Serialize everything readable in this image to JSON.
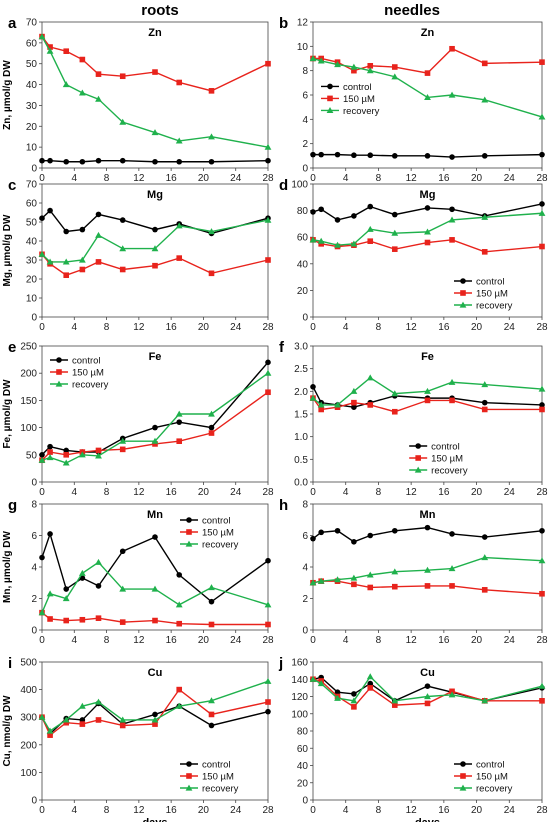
{
  "column_titles": [
    "roots",
    "needles"
  ],
  "xlabel": "days",
  "xticks": [
    0,
    4,
    8,
    12,
    16,
    20,
    24,
    28
  ],
  "series_colors": {
    "control": "#000000",
    "150 µM": "#e8231c",
    "recovery": "#1fb14c"
  },
  "series_markers": {
    "control": "circle",
    "150 µM": "square",
    "recovery": "triangle"
  },
  "chart_data": [
    {
      "type": "line",
      "panel": "a",
      "title": "Zn",
      "ylabel": "Zn, µmol/g DW",
      "ylim": [
        0,
        70
      ],
      "yticks": [
        0,
        10,
        20,
        30,
        40,
        50,
        60,
        70
      ],
      "x": [
        0,
        1,
        3,
        5,
        7,
        10,
        14,
        17,
        21,
        28
      ],
      "legend": false,
      "series": [
        {
          "name": "control",
          "values": [
            3.5,
            3.5,
            3,
            3,
            3.5,
            3.5,
            3,
            3,
            3,
            3.5
          ]
        },
        {
          "name": "150 µM",
          "values": [
            63,
            58,
            56,
            52,
            45,
            44,
            46,
            41,
            37,
            50
          ]
        },
        {
          "name": "recovery",
          "values": [
            63,
            56,
            40,
            36,
            33,
            22,
            17,
            13,
            15,
            10
          ]
        }
      ]
    },
    {
      "type": "line",
      "panel": "b",
      "title": "Zn",
      "ylabel": "",
      "ylim": [
        0,
        12
      ],
      "yticks": [
        0,
        2,
        4,
        6,
        8,
        10,
        12
      ],
      "x": [
        0,
        1,
        3,
        5,
        7,
        10,
        14,
        17,
        21,
        28
      ],
      "legend": true,
      "legend_position": "center-left",
      "series": [
        {
          "name": "control",
          "values": [
            1.1,
            1.1,
            1.1,
            1.05,
            1.05,
            1.0,
            1.0,
            0.9,
            1.0,
            1.1
          ]
        },
        {
          "name": "150 µM",
          "values": [
            9,
            9,
            8.7,
            8.0,
            8.4,
            8.3,
            7.8,
            9.8,
            8.6,
            8.7
          ]
        },
        {
          "name": "recovery",
          "values": [
            9,
            8.8,
            8.5,
            8.3,
            8.0,
            7.5,
            5.8,
            6.0,
            5.6,
            4.2
          ]
        }
      ]
    },
    {
      "type": "line",
      "panel": "c",
      "title": "Mg",
      "ylabel": "Mg, µmol/g DW",
      "ylim": [
        0,
        70
      ],
      "yticks": [
        0,
        10,
        20,
        30,
        40,
        50,
        60,
        70
      ],
      "x": [
        0,
        1,
        3,
        5,
        7,
        10,
        14,
        17,
        21,
        28
      ],
      "legend": false,
      "series": [
        {
          "name": "control",
          "values": [
            52,
            56,
            45,
            46,
            54,
            51,
            46,
            49,
            44,
            52
          ]
        },
        {
          "name": "150 µM",
          "values": [
            33,
            28,
            22,
            25,
            29,
            25,
            27,
            31,
            23,
            30
          ]
        },
        {
          "name": "recovery",
          "values": [
            33,
            29,
            29,
            30,
            43,
            36,
            36,
            48,
            45,
            51
          ]
        }
      ]
    },
    {
      "type": "line",
      "panel": "d",
      "title": "Mg",
      "ylabel": "",
      "ylim": [
        0,
        100
      ],
      "yticks": [
        0,
        20,
        40,
        60,
        80,
        100
      ],
      "x": [
        0,
        1,
        3,
        5,
        7,
        10,
        14,
        17,
        21,
        28
      ],
      "legend": true,
      "legend_position": "bottom-right",
      "series": [
        {
          "name": "control",
          "values": [
            79,
            81,
            73,
            76,
            83,
            77,
            82,
            81,
            76,
            85
          ]
        },
        {
          "name": "150 µM",
          "values": [
            58,
            55,
            53,
            54,
            57,
            51,
            56,
            58,
            49,
            53
          ]
        },
        {
          "name": "recovery",
          "values": [
            58,
            57,
            54,
            55,
            66,
            63,
            64,
            73,
            75,
            78
          ]
        }
      ]
    },
    {
      "type": "line",
      "panel": "e",
      "title": "Fe",
      "ylabel": "Fe, µmol/g DW",
      "ylim": [
        0,
        250
      ],
      "yticks": [
        0,
        50,
        100,
        150,
        200,
        250
      ],
      "x": [
        0,
        1,
        3,
        5,
        7,
        10,
        14,
        17,
        21,
        28
      ],
      "legend": true,
      "legend_position": "top-left",
      "series": [
        {
          "name": "control",
          "values": [
            50,
            65,
            58,
            55,
            55,
            80,
            100,
            110,
            100,
            220
          ]
        },
        {
          "name": "150 µM",
          "values": [
            40,
            55,
            50,
            55,
            58,
            60,
            70,
            75,
            90,
            165
          ]
        },
        {
          "name": "recovery",
          "values": [
            40,
            45,
            35,
            50,
            48,
            75,
            75,
            125,
            125,
            200
          ]
        }
      ]
    },
    {
      "type": "line",
      "panel": "f",
      "title": "Fe",
      "ylabel": "",
      "ylim": [
        0,
        3.0
      ],
      "yticks": [
        0,
        0.5,
        1.0,
        1.5,
        2.0,
        2.5,
        3.0
      ],
      "x": [
        0,
        1,
        3,
        5,
        7,
        10,
        14,
        17,
        21,
        28
      ],
      "legend": true,
      "legend_position": "bottom-center",
      "series": [
        {
          "name": "control",
          "values": [
            2.1,
            1.75,
            1.7,
            1.65,
            1.75,
            1.9,
            1.85,
            1.85,
            1.75,
            1.7
          ]
        },
        {
          "name": "150 µM",
          "values": [
            1.85,
            1.6,
            1.65,
            1.75,
            1.7,
            1.55,
            1.8,
            1.8,
            1.6,
            1.6
          ]
        },
        {
          "name": "recovery",
          "values": [
            1.85,
            1.7,
            1.7,
            2.0,
            2.3,
            1.95,
            2.0,
            2.2,
            2.15,
            2.05
          ]
        }
      ]
    },
    {
      "type": "line",
      "panel": "g",
      "title": "Mn",
      "ylabel": "Mn, µmol/g DW",
      "ylim": [
        0,
        8
      ],
      "yticks": [
        0,
        2,
        4,
        6,
        8
      ],
      "x": [
        0,
        1,
        3,
        5,
        7,
        10,
        14,
        17,
        21,
        28
      ],
      "legend": true,
      "legend_position": "top-right",
      "series": [
        {
          "name": "control",
          "values": [
            4.6,
            6.1,
            2.6,
            3.3,
            2.8,
            5.0,
            5.9,
            3.5,
            1.8,
            4.4
          ]
        },
        {
          "name": "150 µM",
          "values": [
            1.1,
            0.7,
            0.6,
            0.65,
            0.75,
            0.5,
            0.6,
            0.4,
            0.35,
            0.35
          ]
        },
        {
          "name": "recovery",
          "values": [
            1.1,
            2.3,
            2.0,
            3.6,
            4.3,
            2.6,
            2.6,
            1.6,
            2.7,
            1.6
          ]
        }
      ]
    },
    {
      "type": "line",
      "panel": "h",
      "title": "Mn",
      "ylabel": "",
      "ylim": [
        0,
        8
      ],
      "yticks": [
        0,
        2,
        4,
        6,
        8
      ],
      "x": [
        0,
        1,
        3,
        5,
        7,
        10,
        14,
        17,
        21,
        28
      ],
      "legend": false,
      "series": [
        {
          "name": "control",
          "values": [
            5.8,
            6.2,
            6.3,
            5.6,
            6.0,
            6.3,
            6.5,
            6.1,
            5.9,
            6.3
          ]
        },
        {
          "name": "150 µM",
          "values": [
            3.0,
            3.1,
            3.1,
            2.9,
            2.7,
            2.75,
            2.8,
            2.8,
            2.55,
            2.3
          ]
        },
        {
          "name": "recovery",
          "values": [
            3.0,
            3.1,
            3.2,
            3.3,
            3.5,
            3.7,
            3.8,
            3.9,
            4.6,
            4.4
          ]
        }
      ]
    },
    {
      "type": "line",
      "panel": "i",
      "title": "Cu",
      "ylabel": "Cu, nmol/g DW",
      "ylim": [
        0,
        500
      ],
      "yticks": [
        0,
        100,
        200,
        300,
        400,
        500
      ],
      "x": [
        0,
        1,
        3,
        5,
        7,
        10,
        14,
        17,
        21,
        28
      ],
      "legend": true,
      "legend_position": "bottom-right",
      "series": [
        {
          "name": "control",
          "values": [
            300,
            240,
            295,
            290,
            350,
            275,
            310,
            340,
            270,
            320
          ]
        },
        {
          "name": "150 µM",
          "values": [
            300,
            235,
            280,
            275,
            290,
            270,
            275,
            400,
            310,
            355
          ]
        },
        {
          "name": "recovery",
          "values": [
            300,
            250,
            290,
            340,
            355,
            290,
            290,
            340,
            360,
            430
          ]
        }
      ]
    },
    {
      "type": "line",
      "panel": "j",
      "title": "Cu",
      "ylabel": "",
      "ylim": [
        0,
        160
      ],
      "yticks": [
        0,
        20,
        40,
        60,
        80,
        100,
        120,
        140,
        160
      ],
      "x": [
        0,
        1,
        3,
        5,
        7,
        10,
        14,
        17,
        21,
        28
      ],
      "legend": true,
      "legend_position": "bottom-right",
      "series": [
        {
          "name": "control",
          "values": [
            140,
            142,
            125,
            123,
            135,
            115,
            132,
            125,
            115,
            130
          ]
        },
        {
          "name": "150 µM",
          "values": [
            140,
            138,
            120,
            108,
            130,
            110,
            112,
            126,
            115,
            115
          ]
        },
        {
          "name": "recovery",
          "values": [
            140,
            135,
            118,
            115,
            143,
            115,
            120,
            122,
            115,
            132
          ]
        }
      ]
    }
  ]
}
